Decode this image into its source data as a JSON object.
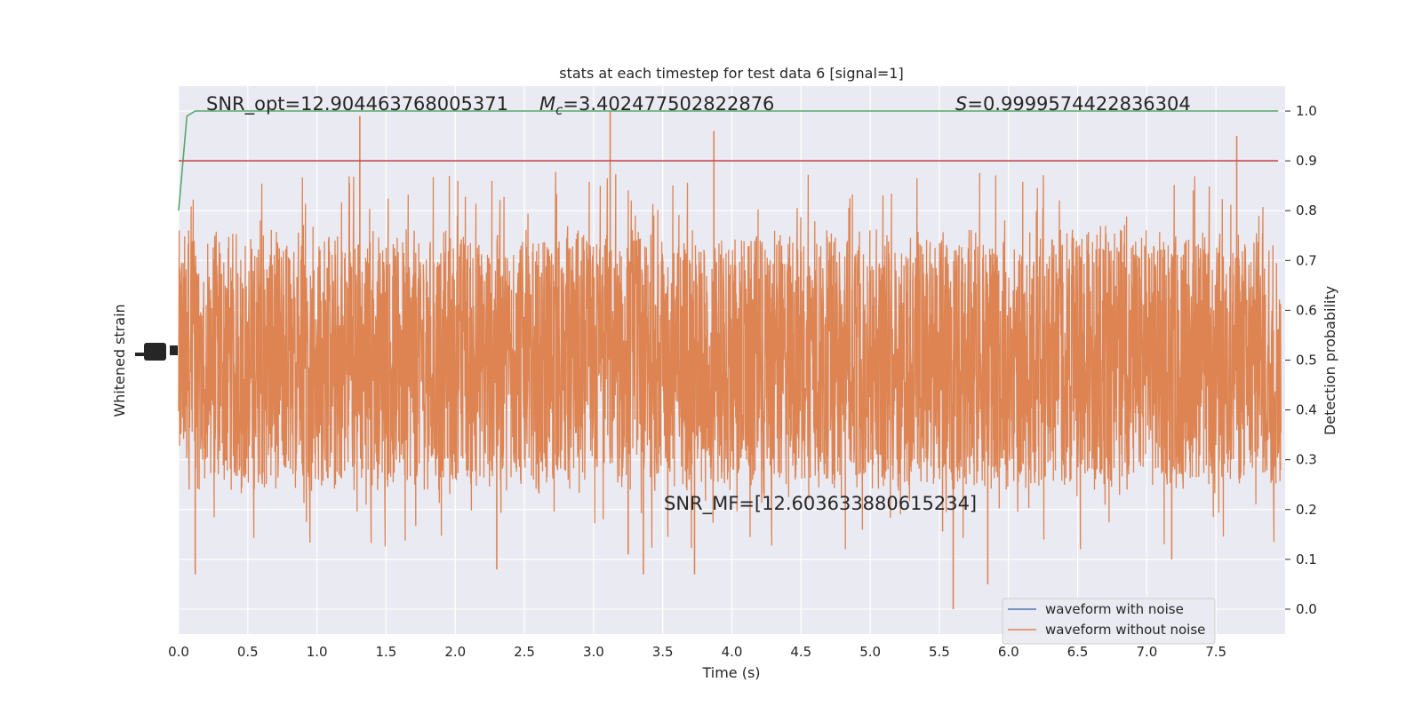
{
  "chart_data": {
    "type": "line",
    "title": "stats at each timestep for test data 6 [signal=1]",
    "xlabel": "Time (s)",
    "ylabel_left": "Whitened strain",
    "ylabel_right": "Detection probability",
    "xlim": [
      0.0,
      8.0
    ],
    "ylim_right": [
      -0.05,
      1.05
    ],
    "x_ticks": [
      "0.0",
      "0.5",
      "1.0",
      "1.5",
      "2.0",
      "2.5",
      "3.0",
      "3.5",
      "4.0",
      "4.5",
      "5.0",
      "5.5",
      "6.0",
      "6.5",
      "7.0",
      "7.5"
    ],
    "y_right_ticks": [
      "0.0",
      "0.1",
      "0.2",
      "0.3",
      "0.4",
      "0.5",
      "0.6",
      "0.7",
      "0.8",
      "0.9",
      "1.0"
    ],
    "grid": true,
    "legend_position": "bottom-right",
    "annotations": {
      "snr_opt": "SNR_opt=12.904463768005371",
      "mc_symbol": "M",
      "mc_sub": "c",
      "mc_value": "=3.402477502822876",
      "s_symbol": "S",
      "s_value": "=0.9999574422836304",
      "snr_mf": "SNR_MF=[12.603633880615234]"
    },
    "series": [
      {
        "name": "waveform with noise",
        "color": "#4c72b0",
        "values_note_axis": "left"
      },
      {
        "name": "waveform without noise",
        "color": "#dd8452",
        "band_center": 0.5,
        "typical_low": 0.3,
        "typical_high": 0.72,
        "min": 0.0,
        "max": 1.0
      },
      {
        "color": "#55a868",
        "x": [
          0.0,
          0.06,
          0.12,
          7.95
        ],
        "y": [
          0.8,
          0.99,
          1.0,
          1.0
        ]
      },
      {
        "color": "#c44e52",
        "x": [
          0.0,
          7.95
        ],
        "y": [
          0.9,
          0.9
        ]
      }
    ],
    "notable_spikes": [
      {
        "x": 1.31,
        "y": 0.99
      },
      {
        "x": 3.12,
        "y": 1.0
      },
      {
        "x": 3.87,
        "y": 0.96
      },
      {
        "x": 7.65,
        "y": 0.95
      },
      {
        "x": 3.36,
        "y": 0.07
      },
      {
        "x": 5.6,
        "y": 0.0
      },
      {
        "x": 0.12,
        "y": 0.07
      },
      {
        "x": 5.85,
        "y": 0.05
      },
      {
        "x": 3.73,
        "y": 0.07
      },
      {
        "x": 7.18,
        "y": 0.1
      },
      {
        "x": 2.3,
        "y": 0.08
      },
      {
        "x": 3.25,
        "y": 0.11
      }
    ]
  }
}
